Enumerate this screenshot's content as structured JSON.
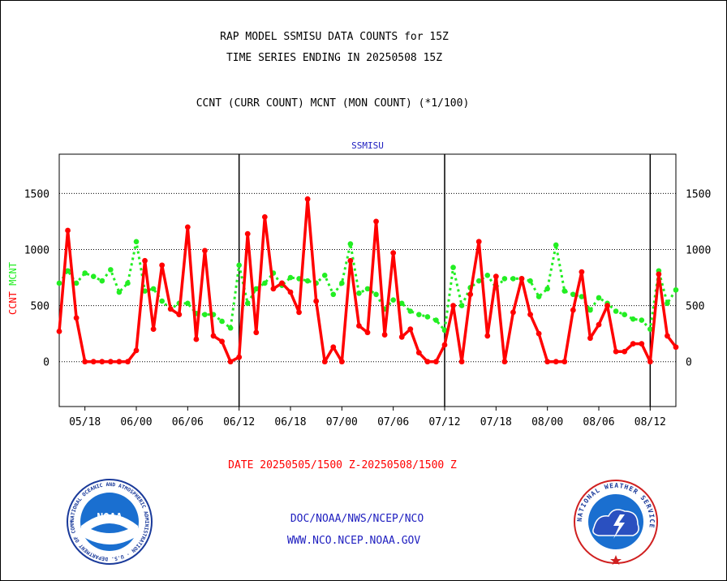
{
  "header": {
    "title_line1": "RAP MODEL SSMISU DATA COUNTS for 15Z",
    "title_line2": "TIME SERIES ENDING IN 20250508 15Z",
    "subtitle": "CCNT (CURR COUNT) MCNT (MON COUNT) (*1/100)"
  },
  "footer": {
    "date_range": "DATE 20250505/1500 Z-20250508/1500 Z",
    "org_line": "DOC/NOAA/NWS/NCEP/NCO",
    "url_line": "WWW.NCO.NCEP.NOAA.GOV"
  },
  "logos": {
    "noaa_text": "NOAA",
    "noaa_ring": "NATIONAL OCEANIC AND ATMOSPHERIC ADMINISTRATION · U.S. DEPARTMENT OF COMMERCE ·",
    "nws_ring": "NATIONAL WEATHER SERVICE"
  },
  "chart_data": {
    "type": "line",
    "title": "SSMISU",
    "ylabel_left": "CCNT",
    "ylabel_right": "MCNT",
    "ylim": [
      -400,
      1850
    ],
    "yticks": [
      0,
      500,
      1000,
      1500
    ],
    "x_range": [
      0,
      72
    ],
    "xtick_positions": [
      3,
      9,
      15,
      21,
      27,
      33,
      39,
      45,
      51,
      57,
      63,
      69
    ],
    "xtick_labels": [
      "05/18",
      "06/00",
      "06/06",
      "06/12",
      "06/18",
      "07/00",
      "07/06",
      "07/12",
      "07/18",
      "08/00",
      "08/06",
      "08/12"
    ],
    "day_boundaries": [
      21,
      45,
      69
    ],
    "grid": "horizontal dotted",
    "series": [
      {
        "name": "CCNT",
        "color": "#ff0000",
        "style": "solid-markers",
        "x": [
          0,
          1,
          2,
          3,
          4,
          5,
          6,
          7,
          8,
          9,
          10,
          11,
          12,
          13,
          14,
          15,
          16,
          17,
          18,
          19,
          20,
          21,
          22,
          23,
          24,
          25,
          26,
          27,
          28,
          29,
          30,
          31,
          32,
          33,
          34,
          35,
          36,
          37,
          38,
          39,
          40,
          41,
          42,
          43,
          44,
          45,
          46,
          47,
          48,
          49,
          50,
          51,
          52,
          53,
          54,
          55,
          56,
          57,
          58,
          59,
          60,
          61,
          62,
          63,
          64,
          65,
          66,
          67,
          68,
          69,
          70,
          71,
          72
        ],
        "values": [
          270,
          1170,
          390,
          0,
          0,
          0,
          0,
          0,
          0,
          100,
          900,
          290,
          860,
          470,
          420,
          1200,
          200,
          990,
          230,
          180,
          0,
          40,
          1140,
          260,
          1290,
          650,
          700,
          620,
          440,
          1450,
          540,
          0,
          130,
          0,
          900,
          320,
          260,
          1250,
          240,
          970,
          220,
          290,
          80,
          0,
          0,
          150,
          500,
          0,
          600,
          1070,
          230,
          760,
          0,
          440,
          740,
          420,
          250,
          0,
          0,
          0,
          460,
          800,
          210,
          330,
          500,
          90,
          90,
          160,
          160,
          0,
          780,
          230,
          130
        ]
      },
      {
        "name": "MCNT",
        "color": "#22ee22",
        "style": "dotted-markers",
        "x": [
          0,
          1,
          2,
          3,
          4,
          5,
          6,
          7,
          8,
          9,
          10,
          11,
          12,
          13,
          14,
          15,
          16,
          17,
          18,
          19,
          20,
          21,
          22,
          23,
          24,
          25,
          26,
          27,
          28,
          29,
          30,
          31,
          32,
          33,
          34,
          35,
          36,
          37,
          38,
          39,
          40,
          41,
          42,
          43,
          44,
          45,
          46,
          47,
          48,
          49,
          50,
          51,
          52,
          53,
          54,
          55,
          56,
          57,
          58,
          59,
          60,
          61,
          62,
          63,
          64,
          65,
          66,
          67,
          68,
          69,
          70,
          71,
          72
        ],
        "values": [
          700,
          810,
          700,
          790,
          760,
          720,
          820,
          620,
          700,
          1070,
          630,
          650,
          540,
          470,
          520,
          520,
          430,
          420,
          420,
          360,
          300,
          860,
          520,
          650,
          700,
          790,
          680,
          750,
          740,
          720,
          700,
          770,
          600,
          700,
          1050,
          610,
          650,
          600,
          470,
          550,
          520,
          450,
          420,
          400,
          370,
          280,
          840,
          500,
          660,
          720,
          770,
          660,
          740,
          740,
          740,
          720,
          580,
          650,
          1040,
          630,
          600,
          580,
          460,
          570,
          520,
          450,
          420,
          380,
          370,
          290,
          810,
          520,
          640
        ]
      }
    ]
  }
}
